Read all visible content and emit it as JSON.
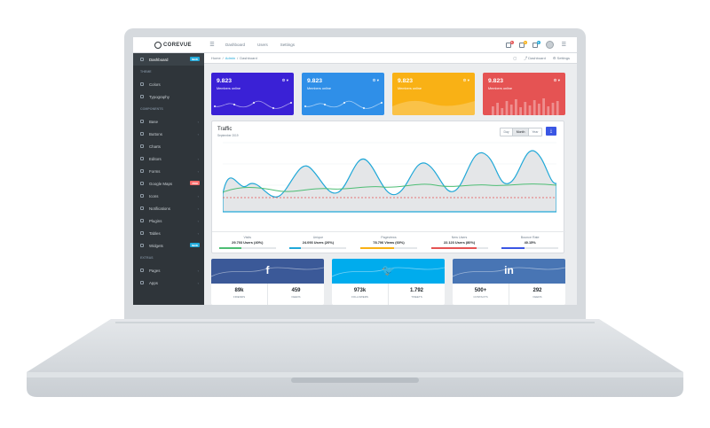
{
  "header": {
    "brand": "COREVUE",
    "nav": [
      "Dashboard",
      "Users",
      "Settings"
    ],
    "badges": [
      "5",
      "3",
      "9"
    ]
  },
  "sidebar": {
    "items": [
      {
        "label": "Dashboard",
        "badge": "NEW",
        "badge_color": "#20a8d8",
        "active": true
      },
      {
        "title": "THEME"
      },
      {
        "label": "Colors"
      },
      {
        "label": "Typography"
      },
      {
        "title": "COMPONENTS"
      },
      {
        "label": "Base",
        "caret": true
      },
      {
        "label": "Buttons",
        "caret": true
      },
      {
        "label": "Charts"
      },
      {
        "label": "Editors",
        "caret": true
      },
      {
        "label": "Forms",
        "caret": true
      },
      {
        "label": "Google Maps",
        "badge": "PRO",
        "badge_color": "#f86c6b"
      },
      {
        "label": "Icons",
        "caret": true
      },
      {
        "label": "Notifications",
        "caret": true
      },
      {
        "label": "Plugins",
        "caret": true
      },
      {
        "label": "Tables",
        "caret": true
      },
      {
        "label": "Widgets",
        "badge": "NEW",
        "badge_color": "#20a8d8"
      },
      {
        "title": "EXTRAS"
      },
      {
        "label": "Pages",
        "caret": true
      },
      {
        "label": "Apps",
        "caret": true
      }
    ]
  },
  "breadcrumb": {
    "home": "Home",
    "admin": "Admin",
    "current": "Dashboard",
    "menu_dashboard": "Dashboard",
    "menu_settings": "Settings"
  },
  "cards": [
    {
      "value": "9.823",
      "label": "Members online",
      "color": "#3a21d6",
      "chart": "line"
    },
    {
      "value": "9.823",
      "label": "Members online",
      "color": "#2f8fe8",
      "chart": "line"
    },
    {
      "value": "9.823",
      "label": "Members online",
      "color": "#f9b115",
      "chart": "area"
    },
    {
      "value": "9.823",
      "label": "Members online",
      "color": "#e55353",
      "chart": "bars"
    }
  ],
  "traffic": {
    "title": "Traffic",
    "subtitle": "September 2019",
    "buttons": [
      "Day",
      "Month",
      "Year"
    ],
    "active_button": "Month",
    "stats": [
      {
        "label": "Visits",
        "value": "29.703 Users (40%)",
        "color": "#4dbd74",
        "pct": 0.4
      },
      {
        "label": "Unique",
        "value": "24.093 Users (20%)",
        "color": "#20a8d8",
        "pct": 0.2
      },
      {
        "label": "Pageviews",
        "value": "78.706 Views (60%)",
        "color": "#f9b115",
        "pct": 0.6
      },
      {
        "label": "New Users",
        "value": "22.123 Users (80%)",
        "color": "#e55353",
        "pct": 0.8
      },
      {
        "label": "Bounce Rate",
        "value": "40.15%",
        "color": "#3a56e4",
        "pct": 0.4
      }
    ]
  },
  "social": [
    {
      "network": "facebook",
      "icon": "f",
      "color": "#3b5998",
      "v1": "89k",
      "l1": "FRIENDS",
      "v2": "459",
      "l2": "FEEDS"
    },
    {
      "network": "twitter",
      "icon": "🐦",
      "color": "#00aced",
      "v1": "973k",
      "l1": "FOLLOWERS",
      "v2": "1.792",
      "l2": "TWEETS"
    },
    {
      "network": "linkedin",
      "icon": "in",
      "color": "#4875b4",
      "v1": "500+",
      "l1": "CONTACTS",
      "v2": "292",
      "l2": "FEEDS"
    }
  ]
}
